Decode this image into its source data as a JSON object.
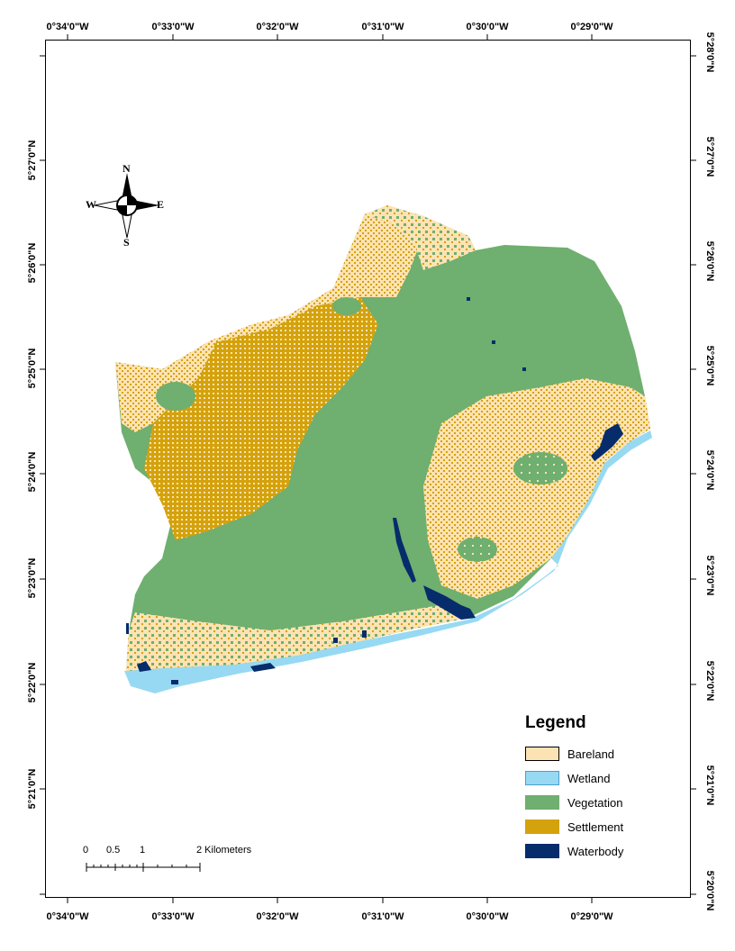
{
  "axes": {
    "top_labels": [
      "0°34'0\"W",
      "0°33'0\"W",
      "0°32'0\"W",
      "0°31'0\"W",
      "0°30'0\"W",
      "0°29'0\"W"
    ],
    "bottom_labels": [
      "0°34'0\"W",
      "0°33'0\"W",
      "0°32'0\"W",
      "0°31'0\"W",
      "0°30'0\"W",
      "0°29'0\"W"
    ],
    "left_labels": [
      "5°27'0\"N",
      "5°26'0\"N",
      "5°25'0\"N",
      "5°24'0\"N",
      "5°23'0\"N",
      "5°22'0\"N",
      "5°21'0\"N"
    ],
    "right_labels": [
      "5°28'0\"N",
      "5°27'0\"N",
      "5°26'0\"N",
      "5°25'0\"N",
      "5°24'0\"N",
      "5°23'0\"N",
      "5°22'0\"N",
      "5°21'0\"N",
      "5°20'0\"N"
    ]
  },
  "compass": {
    "n": "N",
    "s": "S",
    "e": "E",
    "w": "W"
  },
  "legend": {
    "title": "Legend",
    "items": [
      {
        "label": "Bareland",
        "color": "#fde3b3"
      },
      {
        "label": "Wetland",
        "color": "#97d9f2"
      },
      {
        "label": "Vegetation",
        "color": "#6faf6f"
      },
      {
        "label": "Settlement",
        "color": "#d4a20c"
      },
      {
        "label": "Waterbody",
        "color": "#062c6b"
      }
    ]
  },
  "scalebar": {
    "labels": [
      "0",
      "0.5",
      "1",
      "2 Kilometers"
    ]
  }
}
